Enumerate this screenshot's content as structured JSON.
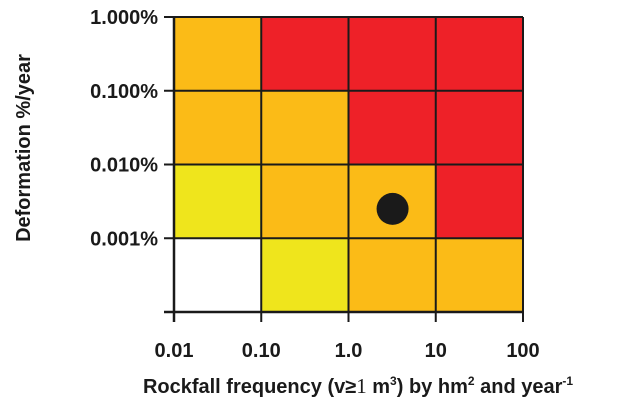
{
  "chart_data": {
    "type": "heatmap",
    "title": "",
    "xlabel": "Rockfall frequency (v≥1 m³) by hm² and year⁻¹",
    "xlabel_parts": {
      "before_sup1": "Rockfall frequency (v≥",
      "one": "1",
      "m": " m",
      "sup1": "3",
      "mid": ") by hm",
      "sup2": "2",
      "and": " and year",
      "sup3": "-1"
    },
    "ylabel": "Deformation %/year",
    "x_scale": "log",
    "y_scale": "log",
    "x_ticks": [
      0.01,
      0.1,
      1,
      10,
      100
    ],
    "x_tick_labels": [
      "0.01",
      "0.10",
      "1.0",
      "10",
      "100"
    ],
    "y_ticks": [
      0.001,
      0.01,
      0.1,
      1
    ],
    "y_tick_labels": [
      "0.001%",
      "0.010%",
      "0.100%",
      "1.000%"
    ],
    "grid": true,
    "columns": [
      "0.01-0.10",
      "0.10-1.0",
      "1.0-10",
      "10-100"
    ],
    "rows": [
      "0.100%-1.000%",
      "0.010%-0.100%",
      "0.001%-0.010%",
      "<0.001%"
    ],
    "cell_colors": [
      [
        "#fbbb17",
        "#ee2128",
        "#ee2128",
        "#ee2128"
      ],
      [
        "#fbbb17",
        "#fbbb17",
        "#ee2128",
        "#ee2128"
      ],
      [
        "#efe51c",
        "#fbbb17",
        "#fbbb17",
        "#ee2128"
      ],
      [
        "#ffffff",
        "#efe51c",
        "#fbbb17",
        "#fbbb17"
      ]
    ],
    "point": {
      "x": 3.2,
      "y": 0.0025,
      "color": "#1a1a1a"
    },
    "colors": {
      "red": "#ee2128",
      "orange": "#fbbb17",
      "yellow": "#efe51c",
      "white": "#ffffff",
      "grid": "#1a1a1a"
    }
  }
}
